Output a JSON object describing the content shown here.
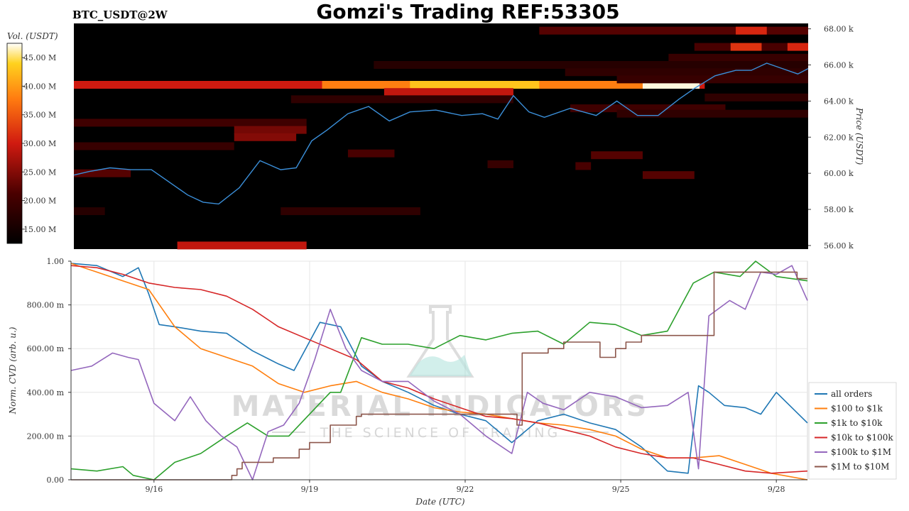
{
  "title": "Gomzi's Trading REF:53305",
  "symbol": "BTC_USDT@2W",
  "watermark": {
    "main": "MATERIAL INDICATORS",
    "sub": "THE SCIENCE OF TRADING"
  },
  "chart_data": [
    {
      "type": "heatmap",
      "description_panel": "order book liquidity heatmap with price line",
      "colorbar": {
        "label": "Vol. (USDT)",
        "ticks": [
          "15.00 M",
          "20.00 M",
          "25.00 M",
          "30.00 M",
          "35.00 M",
          "40.00 M",
          "45.00 M"
        ],
        "tick_values": [
          15,
          20,
          25,
          30,
          35,
          40,
          45
        ],
        "range": [
          12.5,
          47.5
        ]
      },
      "ylabel": "Price (USDT)",
      "yticks": [
        "56.00 k",
        "58.00 k",
        "60.00 k",
        "62.00 k",
        "64.00 k",
        "66.00 k",
        "68.00 k"
      ],
      "ytick_values": [
        56000,
        58000,
        60000,
        62000,
        64000,
        66000,
        68000
      ],
      "ylim": [
        55800,
        68300
      ],
      "xlim": [
        0,
        14.2
      ],
      "liquidity_bands": [
        {
          "price": 64900,
          "start": 0,
          "end": 12.2,
          "volume": 30
        },
        {
          "price": 64900,
          "start": 4.8,
          "end": 11.0,
          "volume": 38
        },
        {
          "price": 64900,
          "start": 6.5,
          "end": 9.0,
          "volume": 43
        },
        {
          "price": 64900,
          "start": 11.0,
          "end": 12.1,
          "volume": 47
        },
        {
          "price": 64500,
          "start": 6.0,
          "end": 8.5,
          "volume": 29
        },
        {
          "price": 62800,
          "start": 0,
          "end": 4.5,
          "volume": 20
        },
        {
          "price": 62400,
          "start": 3.1,
          "end": 4.5,
          "volume": 24
        },
        {
          "price": 62000,
          "start": 3.1,
          "end": 4.3,
          "volume": 25
        },
        {
          "price": 61500,
          "start": 0,
          "end": 3.1,
          "volume": 19
        },
        {
          "price": 61100,
          "start": 5.3,
          "end": 6.2,
          "volume": 21
        },
        {
          "price": 61000,
          "start": 10.0,
          "end": 11.0,
          "volume": 22
        },
        {
          "price": 60500,
          "start": 8.0,
          "end": 8.5,
          "volume": 19
        },
        {
          "price": 60400,
          "start": 9.7,
          "end": 10.0,
          "volume": 21
        },
        {
          "price": 60000,
          "start": 0,
          "end": 1.1,
          "volume": 22
        },
        {
          "price": 59900,
          "start": 11.0,
          "end": 12.0,
          "volume": 22
        },
        {
          "price": 57900,
          "start": 4.0,
          "end": 6.7,
          "volume": 18
        },
        {
          "price": 57900,
          "start": 0,
          "end": 0.6,
          "volume": 17
        },
        {
          "price": 56000,
          "start": 2.0,
          "end": 4.5,
          "volume": 29
        },
        {
          "price": 67900,
          "start": 9.0,
          "end": 14.2,
          "volume": 22
        },
        {
          "price": 67900,
          "start": 12.8,
          "end": 13.4,
          "volume": 31
        },
        {
          "price": 67000,
          "start": 12.0,
          "end": 14.2,
          "volume": 21
        },
        {
          "price": 67000,
          "start": 12.7,
          "end": 13.3,
          "volume": 32
        },
        {
          "price": 67000,
          "start": 13.8,
          "end": 14.2,
          "volume": 31
        },
        {
          "price": 66400,
          "start": 11.5,
          "end": 14.2,
          "volume": 19
        },
        {
          "price": 66000,
          "start": 5.8,
          "end": 14.2,
          "volume": 17
        },
        {
          "price": 65600,
          "start": 9.5,
          "end": 14.2,
          "volume": 18
        },
        {
          "price": 65200,
          "start": 10.5,
          "end": 14.2,
          "volume": 19
        },
        {
          "price": 64100,
          "start": 4.2,
          "end": 8.5,
          "volume": 18
        },
        {
          "price": 63600,
          "start": 9.6,
          "end": 12.6,
          "volume": 20
        },
        {
          "price": 63300,
          "start": 10.5,
          "end": 14.2,
          "volume": 18
        },
        {
          "price": 64200,
          "start": 12.2,
          "end": 14.2,
          "volume": 18
        }
      ],
      "price_series": {
        "name": "Price",
        "x": [
          0,
          0.3,
          0.7,
          1.1,
          1.5,
          1.9,
          2.2,
          2.5,
          2.8,
          3.2,
          3.6,
          4.0,
          4.3,
          4.6,
          4.9,
          5.3,
          5.7,
          6.1,
          6.5,
          7.0,
          7.5,
          7.9,
          8.2,
          8.5,
          8.8,
          9.1,
          9.6,
          10.1,
          10.5,
          10.9,
          11.3,
          11.7,
          12.0,
          12.4,
          12.8,
          13.1,
          13.4,
          13.7,
          14.0,
          14.2
        ],
        "y": [
          59900,
          60100,
          60300,
          60200,
          60200,
          59400,
          58800,
          58400,
          58300,
          59200,
          60700,
          60200,
          60300,
          61800,
          62400,
          63300,
          63700,
          62900,
          63400,
          63500,
          63200,
          63300,
          63000,
          64300,
          63400,
          63100,
          63600,
          63200,
          64000,
          63200,
          63200,
          64100,
          64700,
          65400,
          65700,
          65700,
          66100,
          65800,
          65500,
          65800
        ]
      }
    },
    {
      "type": "line",
      "description_panel": "normalized cumulative volume delta by order size",
      "xlabel": "Date (UTC)",
      "ylabel": "Norm. CVD (arb. u.)",
      "xticks": [
        "9/16",
        "9/19",
        "9/22",
        "9/25",
        "9/28"
      ],
      "xtick_values": [
        1.6,
        4.6,
        7.6,
        10.6,
        13.6
      ],
      "xlim": [
        0,
        14.2
      ],
      "yticks": [
        "0.00",
        "200.00 m",
        "400.00 m",
        "600.00 m",
        "800.00 m",
        "1.00"
      ],
      "ytick_values": [
        0,
        0.2,
        0.4,
        0.6,
        0.8,
        1.0
      ],
      "ylim": [
        0,
        1.0
      ],
      "legend_position": "right",
      "series": [
        {
          "name": "all orders",
          "color": "#1f77b4",
          "x": [
            0,
            0.5,
            1.0,
            1.3,
            1.5,
            1.7,
            2.0,
            2.5,
            3.0,
            3.5,
            4.0,
            4.3,
            4.8,
            5.2,
            5.6,
            6.0,
            6.5,
            7.0,
            7.5,
            8.0,
            8.5,
            9.0,
            9.5,
            10.0,
            10.5,
            11.0,
            11.5,
            11.9,
            12.1,
            12.3,
            12.6,
            13.0,
            13.3,
            13.6,
            14.2
          ],
          "y": [
            0.99,
            0.98,
            0.93,
            0.97,
            0.85,
            0.71,
            0.7,
            0.68,
            0.67,
            0.59,
            0.53,
            0.5,
            0.72,
            0.7,
            0.52,
            0.45,
            0.4,
            0.34,
            0.3,
            0.27,
            0.17,
            0.27,
            0.3,
            0.26,
            0.23,
            0.15,
            0.04,
            0.03,
            0.43,
            0.4,
            0.34,
            0.33,
            0.3,
            0.4,
            0.26
          ]
        },
        {
          "name": "$100 to $1k",
          "color": "#ff7f0e",
          "x": [
            0,
            0.5,
            1.0,
            1.5,
            2.0,
            2.5,
            3.0,
            3.5,
            4.0,
            4.5,
            5.0,
            5.5,
            6.0,
            6.5,
            7.0,
            7.5,
            8.0,
            8.5,
            9.0,
            9.5,
            10.0,
            10.5,
            11.0,
            11.5,
            12.0,
            12.5,
            13.0,
            13.5,
            14.2
          ],
          "y": [
            0.99,
            0.95,
            0.91,
            0.87,
            0.7,
            0.6,
            0.56,
            0.52,
            0.44,
            0.4,
            0.43,
            0.45,
            0.4,
            0.37,
            0.33,
            0.31,
            0.3,
            0.28,
            0.26,
            0.25,
            0.23,
            0.2,
            0.14,
            0.1,
            0.1,
            0.11,
            0.07,
            0.03,
            0.0
          ]
        },
        {
          "name": "$1k to $10k",
          "color": "#2ca02c",
          "x": [
            0,
            0.5,
            1.0,
            1.2,
            1.6,
            2.0,
            2.5,
            3.0,
            3.4,
            3.8,
            4.2,
            4.6,
            5.0,
            5.2,
            5.6,
            6.0,
            6.5,
            7.0,
            7.5,
            8.0,
            8.5,
            9.0,
            9.5,
            10.0,
            10.5,
            11.0,
            11.5,
            12.0,
            12.4,
            12.9,
            13.2,
            13.6,
            14.2
          ],
          "y": [
            0.05,
            0.04,
            0.06,
            0.02,
            0.0,
            0.08,
            0.12,
            0.2,
            0.26,
            0.2,
            0.2,
            0.3,
            0.4,
            0.4,
            0.65,
            0.62,
            0.62,
            0.6,
            0.66,
            0.64,
            0.67,
            0.68,
            0.62,
            0.72,
            0.71,
            0.66,
            0.68,
            0.9,
            0.95,
            0.93,
            1.0,
            0.93,
            0.91
          ]
        },
        {
          "name": "$10k to $100k",
          "color": "#d62728",
          "x": [
            0,
            0.5,
            1.0,
            1.5,
            2.0,
            2.5,
            3.0,
            3.5,
            4.0,
            4.5,
            5.0,
            5.5,
            6.0,
            6.5,
            7.0,
            7.5,
            8.0,
            8.5,
            9.0,
            9.5,
            10.0,
            10.5,
            11.0,
            11.5,
            12.0,
            12.5,
            13.0,
            13.5,
            14.2
          ],
          "y": [
            0.98,
            0.97,
            0.94,
            0.9,
            0.88,
            0.87,
            0.84,
            0.78,
            0.7,
            0.65,
            0.6,
            0.55,
            0.45,
            0.42,
            0.37,
            0.33,
            0.29,
            0.28,
            0.26,
            0.23,
            0.2,
            0.15,
            0.12,
            0.1,
            0.1,
            0.07,
            0.04,
            0.03,
            0.04
          ]
        },
        {
          "name": "$100k to $1M",
          "color": "#9467bd",
          "x": [
            0,
            0.4,
            0.8,
            1.1,
            1.3,
            1.6,
            2.0,
            2.3,
            2.6,
            2.9,
            3.2,
            3.5,
            3.8,
            4.1,
            4.4,
            4.7,
            5.0,
            5.3,
            5.6,
            6.0,
            6.5,
            7.0,
            7.5,
            8.0,
            8.5,
            8.8,
            9.1,
            9.5,
            10.0,
            10.5,
            11.0,
            11.5,
            11.9,
            12.1,
            12.3,
            12.7,
            13.0,
            13.3,
            13.6,
            13.9,
            14.2
          ],
          "y": [
            0.5,
            0.52,
            0.58,
            0.56,
            0.55,
            0.35,
            0.27,
            0.38,
            0.27,
            0.2,
            0.15,
            0.0,
            0.22,
            0.25,
            0.35,
            0.55,
            0.78,
            0.6,
            0.5,
            0.45,
            0.45,
            0.36,
            0.3,
            0.2,
            0.12,
            0.4,
            0.35,
            0.32,
            0.4,
            0.38,
            0.33,
            0.34,
            0.4,
            0.05,
            0.75,
            0.82,
            0.78,
            0.95,
            0.94,
            0.98,
            0.82
          ]
        },
        {
          "name": "$1M to $10M",
          "color": "#8c564b",
          "step": true,
          "x": [
            0,
            2.7,
            3.1,
            3.2,
            3.3,
            3.9,
            4.4,
            4.6,
            5.0,
            5.5,
            5.6,
            5.8,
            6.2,
            6.4,
            6.8,
            7.0,
            8.0,
            8.6,
            8.7,
            9.2,
            9.5,
            9.6,
            10.2,
            10.5,
            10.7,
            11.0,
            11.8,
            11.9,
            12.4,
            12.9,
            13.0,
            13.6,
            14.0,
            14.2
          ],
          "y": [
            0,
            0,
            0.02,
            0.05,
            0.08,
            0.1,
            0.14,
            0.17,
            0.25,
            0.29,
            0.3,
            0.3,
            0.3,
            0.3,
            0.3,
            0.3,
            0.3,
            0.25,
            0.58,
            0.6,
            0.63,
            0.63,
            0.56,
            0.6,
            0.63,
            0.66,
            0.66,
            0.66,
            0.95,
            0.95,
            0.95,
            0.95,
            0.92,
            0.92
          ]
        }
      ]
    }
  ]
}
